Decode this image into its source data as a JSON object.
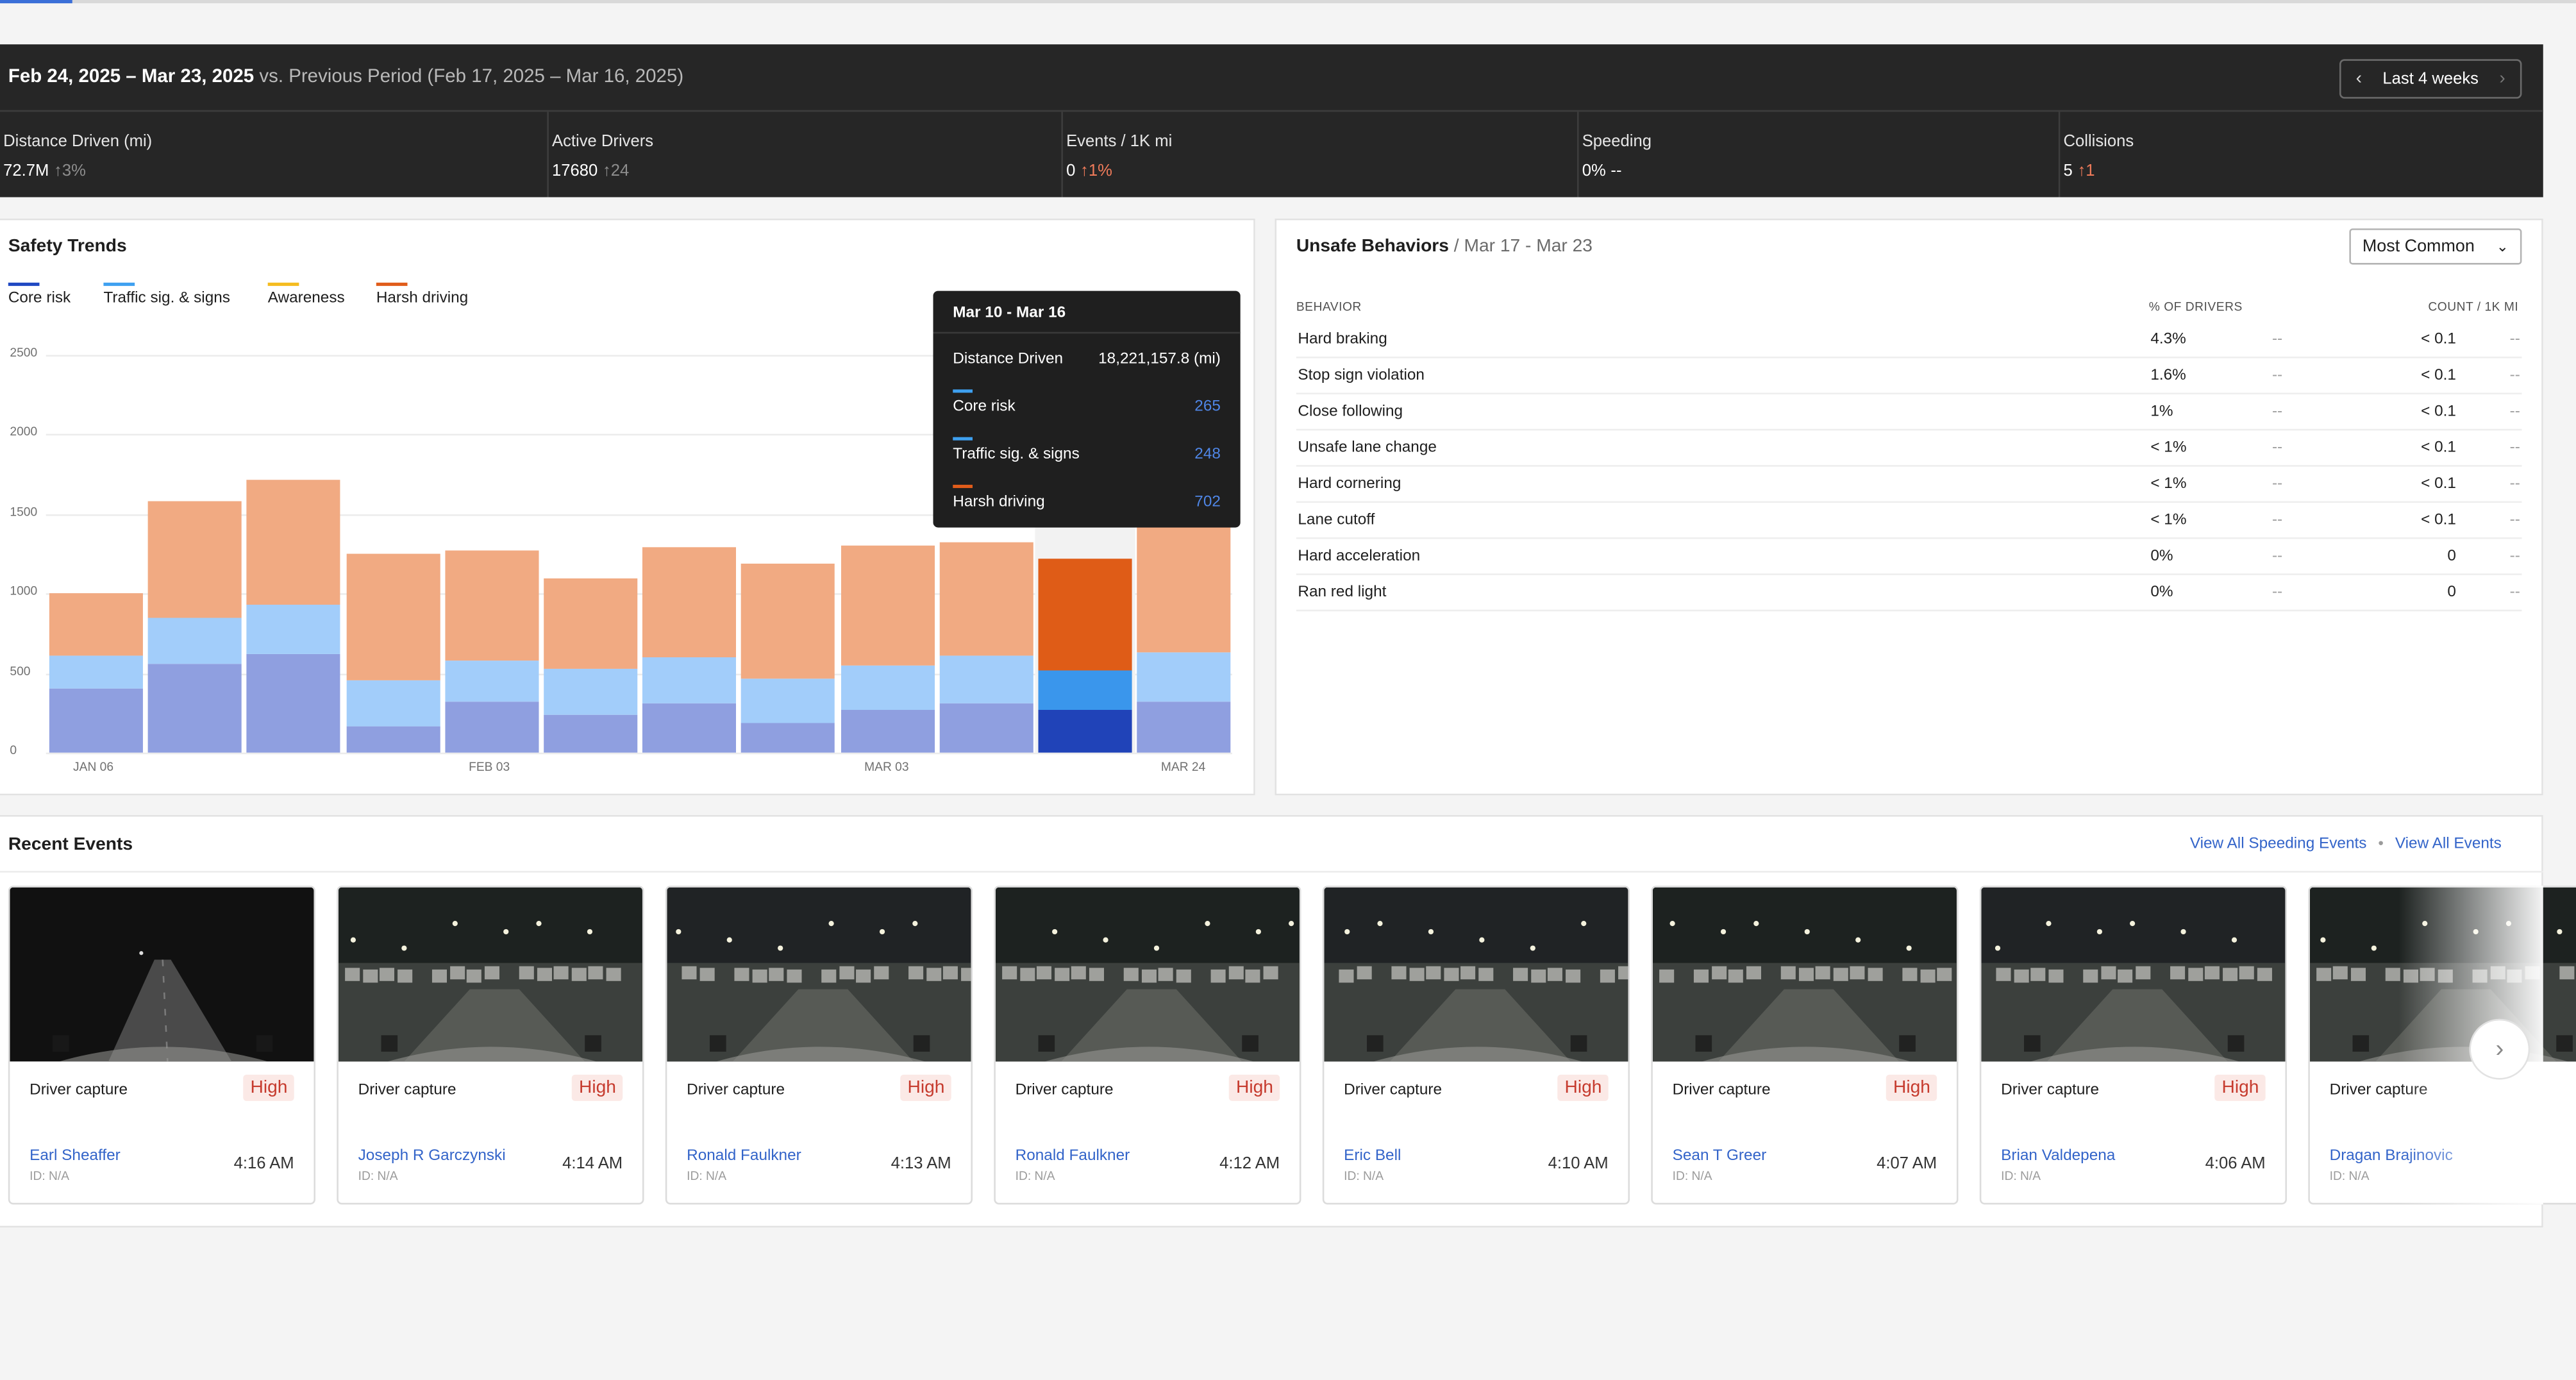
{
  "header": {
    "period_current": "Feb 24, 2025 – Mar 23, 2025",
    "period_compare": " vs. Previous Period (Feb 17, 2025 – Mar 16, 2025)",
    "range_label": "Last 4 weeks",
    "metrics": [
      {
        "label": "Distance Driven (mi)",
        "value": "72.7M",
        "delta": "3%",
        "arrow": "↑",
        "delta_color": "gray"
      },
      {
        "label": "Active Drivers",
        "value": "17680",
        "delta": "24",
        "arrow": "↑",
        "delta_color": "gray"
      },
      {
        "label": "Events / 1K mi",
        "value": "0",
        "delta": "1%",
        "arrow": "↑",
        "delta_color": "red"
      },
      {
        "label": "Speeding",
        "value": "0%",
        "delta": "--",
        "arrow": "",
        "delta_color": "none"
      },
      {
        "label": "Collisions",
        "value": "5",
        "delta": "1",
        "arrow": "↑",
        "delta_color": "red"
      }
    ]
  },
  "safety_trends": {
    "title": "Safety Trends",
    "legend": [
      {
        "label": "Core risk",
        "color": "#1f47c2"
      },
      {
        "label": "Traffic sig. & signs",
        "color": "#3ea0f0"
      },
      {
        "label": "Awareness",
        "color": "#f5bc1f"
      },
      {
        "label": "Harsh driving",
        "color": "#e05c1a"
      }
    ],
    "tooltip": {
      "title": "Mar 10 - Mar 16",
      "distance_label": "Distance Driven",
      "distance_value": "18,221,157.8 (mi)",
      "rows": [
        {
          "label": "Core risk",
          "value": "265",
          "color": "#3ea0f0"
        },
        {
          "label": "Traffic sig. & signs",
          "value": "248",
          "color": "#3ea0f0"
        },
        {
          "label": "Harsh driving",
          "value": "702",
          "color": "#e05c1a"
        }
      ]
    }
  },
  "chart_data": {
    "type": "bar",
    "stacked": true,
    "categories": [
      "JAN 06",
      "",
      "",
      "",
      "FEB 03",
      "",
      "",
      "",
      "MAR 03",
      "",
      "",
      "MAR 24"
    ],
    "x_tick_labels": [
      "JAN 06",
      "FEB 03",
      "MAR 03",
      "MAR 24"
    ],
    "y_ticks": [
      0,
      500,
      1000,
      1500,
      2000,
      2500
    ],
    "ylim": [
      0,
      2500
    ],
    "highlight_index": 10,
    "series": [
      {
        "name": "Core risk",
        "values": [
          400,
          560,
          620,
          170,
          320,
          240,
          310,
          190,
          270,
          310,
          265,
          320
        ],
        "color": "#8f9fe0",
        "highlight_color": "#2043b8"
      },
      {
        "name": "Traffic sig. & signs",
        "values": [
          210,
          290,
          310,
          280,
          260,
          290,
          290,
          270,
          280,
          300,
          248,
          310
        ],
        "color": "#a2cdfa",
        "highlight_color": "#3a96ec"
      },
      {
        "name": "Harsh driving",
        "values": [
          390,
          730,
          780,
          800,
          690,
          570,
          690,
          730,
          750,
          710,
          702,
          820
        ],
        "color": "#f1aa82",
        "highlight_color": "#df5c17"
      }
    ]
  },
  "unsafe_behaviors": {
    "title": "Unsafe Behaviors",
    "subtitle": "Mar 17 - Mar 23",
    "sort_label": "Most Common",
    "columns": {
      "behavior": "BEHAVIOR",
      "pct": "% OF DRIVERS",
      "count": "COUNT / 1K MI"
    },
    "rows": [
      {
        "behavior": "Hard braking",
        "pct": "4.3%",
        "pct_delta": "--",
        "count": "< 0.1",
        "count_delta": "--"
      },
      {
        "behavior": "Stop sign violation",
        "pct": "1.6%",
        "pct_delta": "--",
        "count": "< 0.1",
        "count_delta": "--"
      },
      {
        "behavior": "Close following",
        "pct": "1%",
        "pct_delta": "--",
        "count": "< 0.1",
        "count_delta": "--"
      },
      {
        "behavior": "Unsafe lane change",
        "pct": "< 1%",
        "pct_delta": "--",
        "count": "< 0.1",
        "count_delta": "--"
      },
      {
        "behavior": "Hard cornering",
        "pct": "< 1%",
        "pct_delta": "--",
        "count": "< 0.1",
        "count_delta": "--"
      },
      {
        "behavior": "Lane cutoff",
        "pct": "< 1%",
        "pct_delta": "--",
        "count": "< 0.1",
        "count_delta": "--"
      },
      {
        "behavior": "Hard acceleration",
        "pct": "0%",
        "pct_delta": "--",
        "count": "0",
        "count_delta": "--"
      },
      {
        "behavior": "Ran red light",
        "pct": "0%",
        "pct_delta": "--",
        "count": "0",
        "count_delta": "--"
      }
    ]
  },
  "recent_events": {
    "title": "Recent Events",
    "link_speeding": "View All Speeding Events",
    "link_dot": "•",
    "link_all": "View All Events",
    "events": [
      {
        "type": "Driver capture",
        "severity": "High",
        "driver": "Earl Sheaffer",
        "id": "ID: N/A",
        "time": "4:16 AM"
      },
      {
        "type": "Driver capture",
        "severity": "High",
        "driver": "Joseph R Garczynski",
        "id": "ID: N/A",
        "time": "4:14 AM"
      },
      {
        "type": "Driver capture",
        "severity": "High",
        "driver": "Ronald Faulkner",
        "id": "ID: N/A",
        "time": "4:13 AM"
      },
      {
        "type": "Driver capture",
        "severity": "High",
        "driver": "Ronald Faulkner",
        "id": "ID: N/A",
        "time": "4:12 AM"
      },
      {
        "type": "Driver capture",
        "severity": "High",
        "driver": "Eric Bell",
        "id": "ID: N/A",
        "time": "4:10 AM"
      },
      {
        "type": "Driver capture",
        "severity": "High",
        "driver": "Sean T Greer",
        "id": "ID: N/A",
        "time": "4:07 AM"
      },
      {
        "type": "Driver capture",
        "severity": "High",
        "driver": "Brian Valdepena",
        "id": "ID: N/A",
        "time": "4:06 AM"
      },
      {
        "type": "Driver capture",
        "severity": "",
        "driver": "Dragan Brajinovic",
        "id": "ID: N/A",
        "time": ""
      }
    ]
  }
}
